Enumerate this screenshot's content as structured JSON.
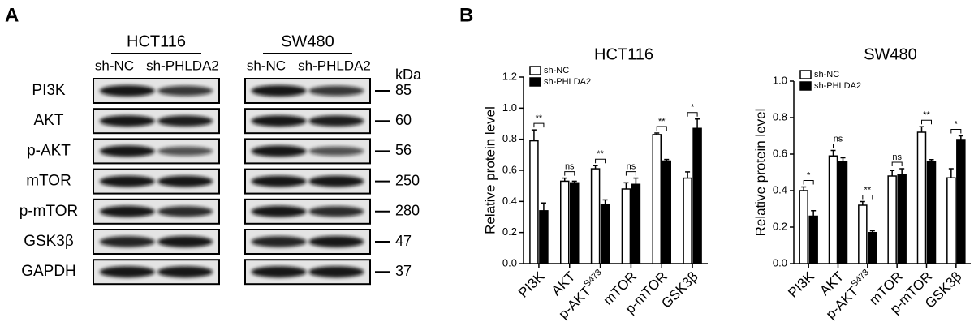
{
  "panel_labels": [
    "A",
    "B"
  ],
  "blot": {
    "cell_lines": [
      {
        "name": "HCT116",
        "groups": [
          "sh-NC",
          "sh-PHLDA2"
        ]
      },
      {
        "name": "SW480",
        "groups": [
          "sh-NC",
          "sh-PHLDA2"
        ]
      }
    ],
    "proteins": [
      "PI3K",
      "AKT",
      "p-AKT",
      "mTOR",
      "p-mTOR",
      "GSK3β",
      "GAPDH"
    ],
    "kda_label": "kDa",
    "kda": [
      85,
      60,
      56,
      250,
      280,
      47,
      37
    ]
  },
  "chart_data": [
    {
      "type": "bar",
      "title": "HCT116",
      "y_label": "Relative protein level",
      "categories": [
        "PI3K",
        "AKT",
        "p-AKT",
        "mTOR",
        "p-mTOR",
        "GSK3β"
      ],
      "category_superscripts": [
        null,
        null,
        "S473",
        null,
        null,
        null
      ],
      "series": [
        {
          "name": "sh-NC",
          "color": "#ffffff",
          "values": [
            0.79,
            0.53,
            0.61,
            0.48,
            0.83,
            0.55
          ],
          "errors": [
            0.07,
            0.02,
            0.02,
            0.04,
            0.01,
            0.04
          ]
        },
        {
          "name": "sh-PHLDA2",
          "color": "#000000",
          "values": [
            0.34,
            0.52,
            0.38,
            0.51,
            0.66,
            0.87
          ],
          "errors": [
            0.05,
            0.01,
            0.03,
            0.04,
            0.01,
            0.06
          ]
        }
      ],
      "significance": [
        "**",
        "ns",
        "**",
        "ns",
        "**",
        "*"
      ],
      "ylim": [
        0,
        1.2
      ],
      "yticks": [
        {
          "value": 0,
          "label": "0.0"
        },
        0.2,
        0.4,
        0.6,
        0.8,
        {
          "value": 1,
          "label": "1.0"
        },
        1.2
      ],
      "legend": "top-left"
    },
    {
      "type": "bar",
      "title": "SW480",
      "y_label": "Relative protein level",
      "categories": [
        "PI3K",
        "AKT",
        "p-AKT",
        "mTOR",
        "p-mTOR",
        "GSK3β"
      ],
      "category_superscripts": [
        null,
        null,
        "S473",
        null,
        null,
        null
      ],
      "series": [
        {
          "name": "sh-NC",
          "color": "#ffffff",
          "values": [
            0.4,
            0.59,
            0.32,
            0.48,
            0.72,
            0.47
          ],
          "errors": [
            0.02,
            0.03,
            0.02,
            0.03,
            0.03,
            0.05
          ]
        },
        {
          "name": "sh-PHLDA2",
          "color": "#000000",
          "values": [
            0.26,
            0.56,
            0.17,
            0.49,
            0.56,
            0.68
          ],
          "errors": [
            0.03,
            0.02,
            0.01,
            0.03,
            0.01,
            0.02
          ]
        }
      ],
      "significance": [
        "*",
        "ns",
        "**",
        "ns",
        "**",
        "*"
      ],
      "ylim": [
        0,
        1
      ],
      "yticks": [
        {
          "value": 0,
          "label": "0.0"
        },
        0.2,
        0.4,
        0.6,
        0.8,
        {
          "value": 1,
          "label": "1.0"
        }
      ],
      "legend": "top-left"
    }
  ]
}
